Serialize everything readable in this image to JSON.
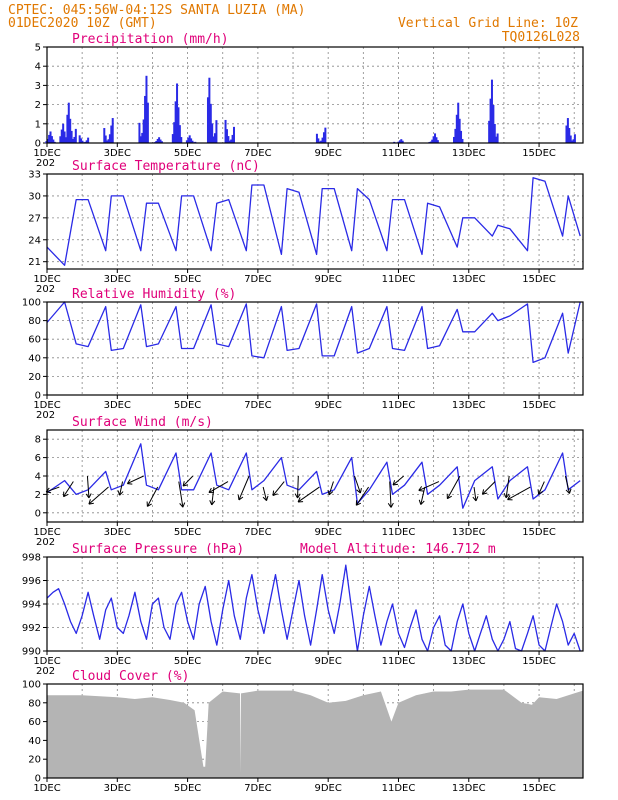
{
  "header": {
    "line1": "CPTEC:   045:56W-04:12S  SANTA LUZIA (MA)",
    "line2": "01DEC2020 10Z (GMT)",
    "grid_note": "Vertical Grid Line: 10Z",
    "code": "TQ0126L028"
  },
  "colors": {
    "header": "#e07800",
    "title": "#e0007a",
    "series": "#2a2ae6",
    "cloud": "#b4b4b4"
  },
  "x_axis": {
    "labels": [
      "1DEC",
      "3DEC",
      "5DEC",
      "7DEC",
      "9DEC",
      "11DEC",
      "13DEC",
      "15DEC"
    ],
    "year_fragment": "202",
    "start_day": 1,
    "end_day": 16.25
  },
  "chart_data": [
    {
      "id": "precip",
      "type": "bar",
      "title": "Precipitation (mm/h)",
      "ylim": [
        0,
        5
      ],
      "yticks": [
        0,
        1,
        2,
        3,
        4,
        5
      ],
      "clusters": [
        {
          "x": 1.1,
          "peak": 0.6
        },
        {
          "x": 1.5,
          "peak": 1.0
        },
        {
          "x": 1.7,
          "peak": 2.1
        },
        {
          "x": 2.05,
          "peak": 0.4
        },
        {
          "x": 2.75,
          "peak": 1.3
        },
        {
          "x": 3.75,
          "peak": 3.5
        },
        {
          "x": 4.15,
          "peak": 0.3
        },
        {
          "x": 4.7,
          "peak": 3.1
        },
        {
          "x": 5.1,
          "peak": 0.4
        },
        {
          "x": 5.7,
          "peak": 3.4
        },
        {
          "x": 6.2,
          "peak": 1.2
        },
        {
          "x": 8.8,
          "peak": 0.8
        },
        {
          "x": 11.0,
          "peak": 0.2
        },
        {
          "x": 12.0,
          "peak": 0.5
        },
        {
          "x": 12.7,
          "peak": 2.1
        },
        {
          "x": 13.7,
          "peak": 3.3
        },
        {
          "x": 15.9,
          "peak": 1.3
        }
      ]
    },
    {
      "id": "temp",
      "type": "line",
      "title": "Surface Temperature (nC)",
      "ylim": [
        20,
        33
      ],
      "yticks": [
        21,
        24,
        27,
        30,
        33
      ],
      "x": [
        1.0,
        1.5,
        1.83,
        2.17,
        2.67,
        2.83,
        3.17,
        3.67,
        3.83,
        4.17,
        4.67,
        4.83,
        5.17,
        5.67,
        5.83,
        6.17,
        6.67,
        6.83,
        7.17,
        7.67,
        7.83,
        8.17,
        8.67,
        8.83,
        9.17,
        9.67,
        9.83,
        10.17,
        10.67,
        10.83,
        11.17,
        11.67,
        11.83,
        12.17,
        12.67,
        12.83,
        13.17,
        13.67,
        13.83,
        14.17,
        14.67,
        14.83,
        15.17,
        15.67,
        15.83,
        16.17
      ],
      "y": [
        23.0,
        20.5,
        29.5,
        29.5,
        22.5,
        30.0,
        30.0,
        22.5,
        29.0,
        29.0,
        22.5,
        30.0,
        30.0,
        22.5,
        29.0,
        29.5,
        22.5,
        31.5,
        31.5,
        22.0,
        31.0,
        30.5,
        22.0,
        31.0,
        31.0,
        22.5,
        31.0,
        29.5,
        22.5,
        29.5,
        29.5,
        22.0,
        29.0,
        28.5,
        23.0,
        27.0,
        27.0,
        24.5,
        26.0,
        25.5,
        22.5,
        32.5,
        32.0,
        24.5,
        30.0,
        24.5
      ]
    },
    {
      "id": "rh",
      "type": "line",
      "title": "Relative Humidity (%)",
      "ylim": [
        0,
        100
      ],
      "yticks": [
        0,
        20,
        40,
        60,
        80,
        100
      ],
      "x": [
        1.0,
        1.5,
        1.83,
        2.17,
        2.67,
        2.83,
        3.17,
        3.67,
        3.83,
        4.17,
        4.67,
        4.83,
        5.17,
        5.67,
        5.83,
        6.17,
        6.67,
        6.83,
        7.17,
        7.67,
        7.83,
        8.17,
        8.67,
        8.83,
        9.17,
        9.67,
        9.83,
        10.17,
        10.67,
        10.83,
        11.17,
        11.67,
        11.83,
        12.17,
        12.67,
        12.83,
        13.17,
        13.67,
        13.83,
        14.17,
        14.67,
        14.83,
        15.17,
        15.67,
        15.83,
        16.17
      ],
      "y": [
        78,
        100,
        55,
        52,
        95,
        48,
        50,
        97,
        52,
        55,
        95,
        50,
        50,
        97,
        55,
        52,
        98,
        42,
        40,
        95,
        48,
        50,
        98,
        42,
        42,
        95,
        45,
        50,
        95,
        50,
        48,
        95,
        50,
        53,
        92,
        68,
        68,
        88,
        80,
        85,
        98,
        35,
        40,
        88,
        45,
        100
      ]
    },
    {
      "id": "wind",
      "type": "line",
      "title": "Surface Wind (m/s)",
      "ylim": [
        -1,
        9
      ],
      "yticks": [
        0,
        2,
        4,
        6,
        8
      ],
      "x": [
        1.0,
        1.5,
        1.83,
        2.17,
        2.67,
        2.83,
        3.17,
        3.67,
        3.83,
        4.17,
        4.67,
        4.83,
        5.17,
        5.67,
        5.83,
        6.17,
        6.67,
        6.83,
        7.17,
        7.67,
        7.83,
        8.17,
        8.67,
        8.83,
        9.17,
        9.67,
        9.83,
        10.17,
        10.67,
        10.83,
        11.17,
        11.67,
        11.83,
        12.17,
        12.67,
        12.83,
        13.17,
        13.67,
        13.83,
        14.17,
        14.67,
        14.83,
        15.17,
        15.67,
        15.83,
        16.17
      ],
      "y": [
        2.2,
        3.5,
        2.0,
        2.5,
        4.5,
        2.5,
        3.0,
        7.5,
        3.0,
        2.5,
        6.5,
        2.5,
        2.5,
        6.5,
        3.0,
        2.5,
        6.5,
        2.5,
        3.5,
        6.0,
        3.0,
        2.5,
        4.5,
        2.0,
        2.5,
        6.0,
        1.0,
        2.5,
        5.5,
        2.0,
        3.0,
        5.5,
        2.0,
        3.0,
        5.0,
        0.5,
        3.5,
        5.0,
        1.5,
        3.5,
        5.0,
        1.5,
        2.5,
        6.5,
        2.5,
        3.5
      ],
      "vector_days": [
        1.35,
        1.75,
        2.15,
        2.75,
        3.15,
        3.75,
        4.15,
        4.75,
        5.15,
        5.75,
        6.15,
        6.75,
        7.15,
        7.75,
        8.15,
        8.75,
        9.15,
        9.75,
        10.15,
        10.75,
        11.15,
        11.75,
        12.15,
        12.75,
        13.15,
        13.75,
        14.15,
        14.75,
        15.15,
        15.75
      ]
    },
    {
      "id": "pressure",
      "type": "line",
      "title": "Surface Pressure (hPa)",
      "note": "Model Altitude: 146.712 m",
      "ylim": [
        990,
        998
      ],
      "yticks": [
        990,
        992,
        994,
        996,
        998
      ],
      "x": [
        1.0,
        1.17,
        1.33,
        1.5,
        1.67,
        1.83,
        2.0,
        2.17,
        2.33,
        2.5,
        2.67,
        2.83,
        3.0,
        3.17,
        3.33,
        3.5,
        3.67,
        3.83,
        4.0,
        4.17,
        4.33,
        4.5,
        4.67,
        4.83,
        5.0,
        5.17,
        5.33,
        5.5,
        5.67,
        5.83,
        6.0,
        6.17,
        6.33,
        6.5,
        6.67,
        6.83,
        7.0,
        7.17,
        7.33,
        7.5,
        7.67,
        7.83,
        8.0,
        8.17,
        8.33,
        8.5,
        8.67,
        8.83,
        9.0,
        9.17,
        9.33,
        9.5,
        9.67,
        9.83,
        10.0,
        10.17,
        10.33,
        10.5,
        10.67,
        10.83,
        11.0,
        11.17,
        11.33,
        11.5,
        11.67,
        11.83,
        12.0,
        12.17,
        12.33,
        12.5,
        12.67,
        12.83,
        13.0,
        13.17,
        13.33,
        13.5,
        13.67,
        13.83,
        14.0,
        14.17,
        14.33,
        14.5,
        14.67,
        14.83,
        15.0,
        15.17,
        15.33,
        15.5,
        15.67,
        15.83,
        16.0,
        16.17
      ],
      "y": [
        994.5,
        995.0,
        995.3,
        994.0,
        992.5,
        991.5,
        993.0,
        995.0,
        993.0,
        991.0,
        993.5,
        994.5,
        992.0,
        991.5,
        993.0,
        995.0,
        992.5,
        991.0,
        994.0,
        994.5,
        992.0,
        991.0,
        994.0,
        995.0,
        992.5,
        991.0,
        994.0,
        995.5,
        992.5,
        990.5,
        993.5,
        996.0,
        993.0,
        991.0,
        994.5,
        996.5,
        993.5,
        991.5,
        994.0,
        996.5,
        993.5,
        991.0,
        993.5,
        996.0,
        993.0,
        990.5,
        993.5,
        996.5,
        993.5,
        991.5,
        994.0,
        997.3,
        993.5,
        990.0,
        993.0,
        995.5,
        993.0,
        990.5,
        992.5,
        994.0,
        991.5,
        990.3,
        992.0,
        993.5,
        991.0,
        990.0,
        992.0,
        993.0,
        990.5,
        990.0,
        992.5,
        994.0,
        991.5,
        990.0,
        991.5,
        993.0,
        991.0,
        990.0,
        991.0,
        992.5,
        990.2,
        990.0,
        991.5,
        993.0,
        990.5,
        990.0,
        992.0,
        994.0,
        992.5,
        990.5,
        991.5,
        990.0
      ]
    },
    {
      "id": "cloud",
      "type": "area",
      "title": "Cloud Cover (%)",
      "ylim": [
        0,
        100
      ],
      "yticks": [
        0,
        20,
        40,
        60,
        80,
        100
      ],
      "x": [
        1.0,
        2.0,
        3.0,
        3.5,
        4.0,
        4.5,
        4.9,
        5.2,
        5.45,
        5.5,
        5.6,
        6.0,
        6.49,
        6.5,
        6.52,
        7.0,
        8.0,
        8.5,
        9.0,
        9.5,
        10.0,
        10.5,
        10.8,
        11.0,
        11.5,
        12.0,
        12.5,
        13.0,
        13.5,
        14.0,
        14.5,
        14.8,
        15.0,
        15.5,
        16.0,
        16.25
      ],
      "y": [
        88,
        88,
        86,
        84,
        86,
        83,
        80,
        72,
        12,
        12,
        80,
        92,
        90,
        5,
        90,
        93,
        93,
        88,
        80,
        82,
        88,
        92,
        60,
        80,
        88,
        92,
        92,
        94,
        94,
        94,
        80,
        78,
        86,
        84,
        90,
        93
      ]
    }
  ]
}
